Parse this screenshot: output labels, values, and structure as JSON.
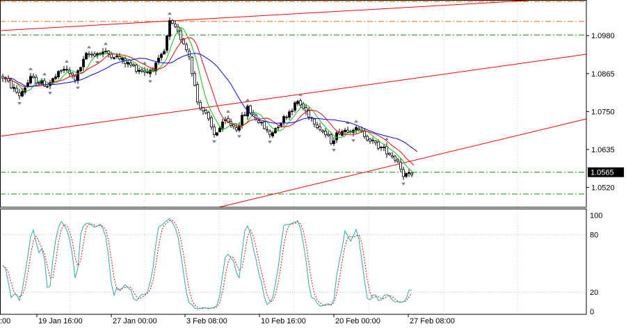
{
  "chart_data": {
    "type": "candlestick",
    "symbol_panel": {
      "y_ticks": [
        "1.0980",
        "1.0865",
        "1.0750",
        "1.0635",
        "1.0520"
      ],
      "ylim": [
        1.046,
        1.1088
      ],
      "current_price": "1.0565",
      "horizontal_levels": [
        {
          "price": 1.1083,
          "color": "#ff6600",
          "style": "dashdot"
        },
        {
          "price": 1.1023,
          "color": "#ff6600",
          "style": "dashdot"
        },
        {
          "price": 1.0982,
          "color": "#009900",
          "style": "dashdot"
        },
        {
          "price": 1.0566,
          "color": "#009900",
          "style": "dashdot"
        },
        {
          "price": 1.05,
          "color": "#009900",
          "style": "dashdot"
        }
      ],
      "channel_color": "#ff0000",
      "moving_average_colors": [
        "#00cc00",
        "#ff0000",
        "#0000ff"
      ]
    },
    "oscillator_panel": {
      "y_ticks": [
        "100",
        "80",
        "20",
        "0"
      ],
      "ylim": [
        -3,
        107
      ],
      "main_color": "#20b2aa",
      "signal_color": "#ff0000",
      "level_color": "#c0c0c0"
    },
    "x_ticks": [
      "19 Jan 16:00",
      "27 Jan 00:00",
      "3 Feb 08:00",
      "10 Feb 16:00",
      "20 Feb 00:00",
      "27 Feb 08:00"
    ],
    "x_tick_prefix": ":00",
    "bull_color": "#000000",
    "bear_color": "#ffffff",
    "fractal_color": "#808080"
  }
}
